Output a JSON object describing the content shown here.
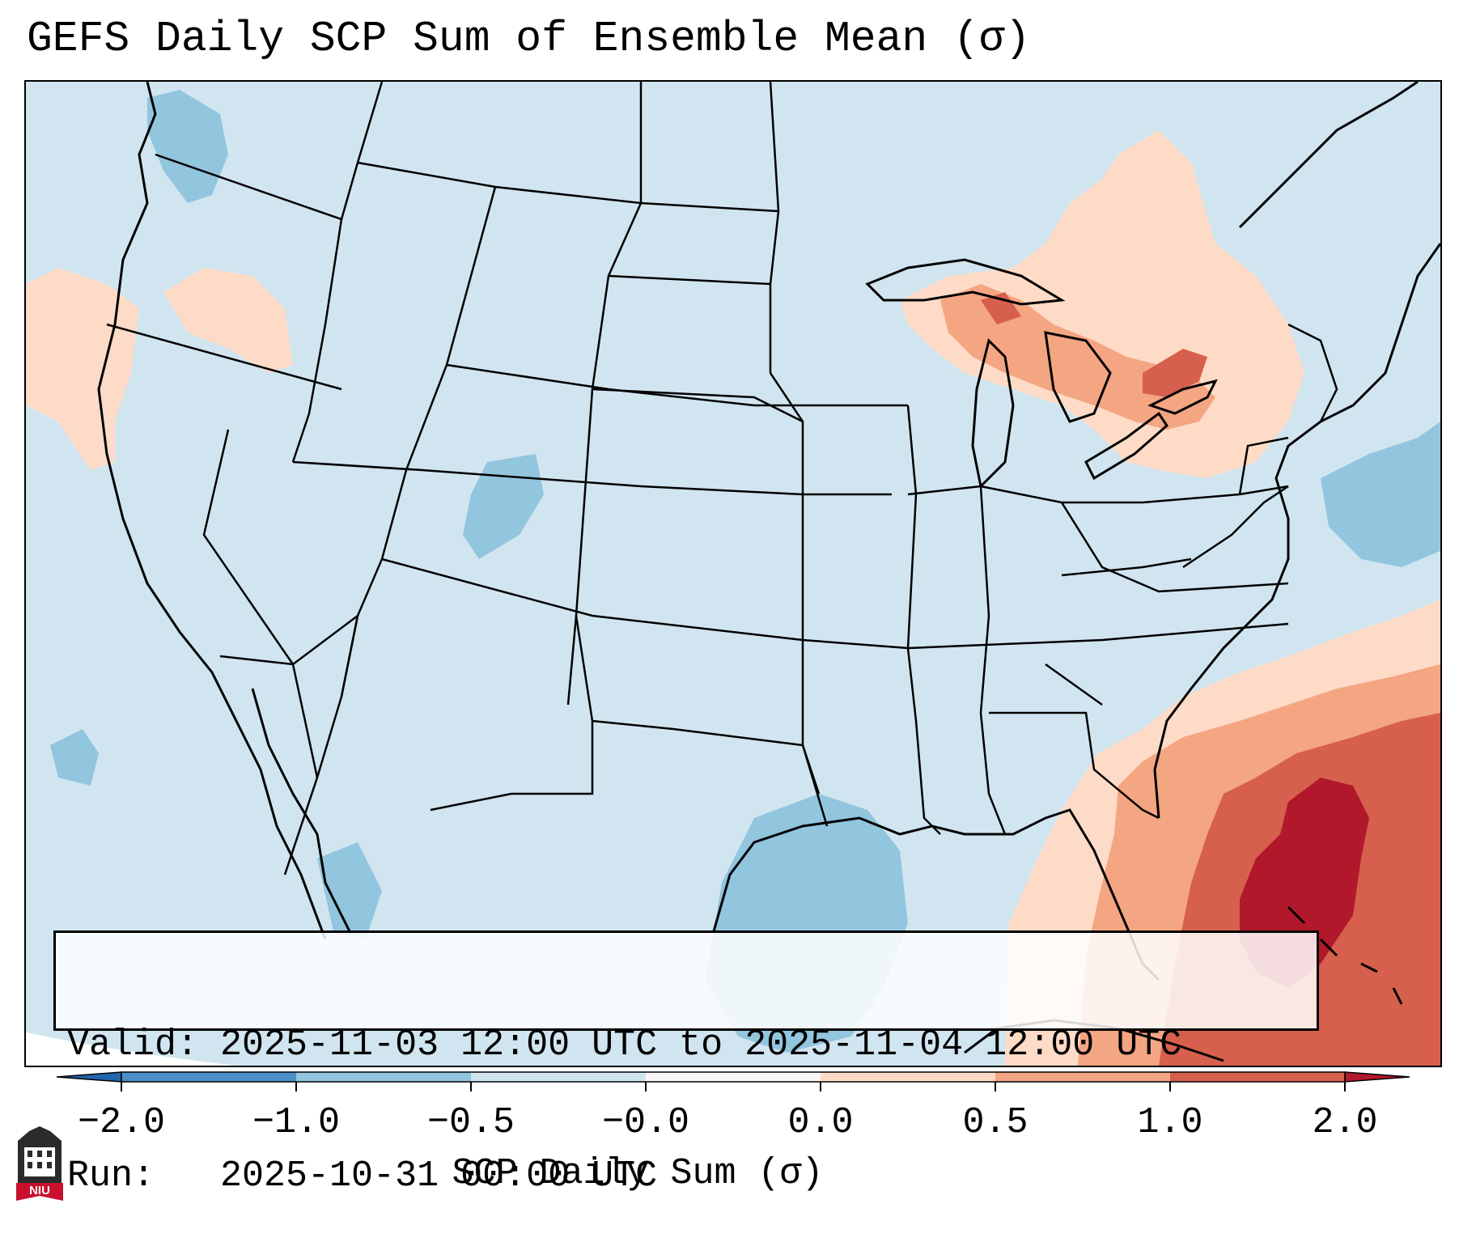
{
  "title": "GEFS Daily SCP Sum of Ensemble Mean (σ)",
  "info": {
    "valid": "Valid: 2025-11-03 12:00 UTC to 2025-11-04 12:00 UTC",
    "run": "Run:   2025-10-31 00:00 UTC"
  },
  "colorbar": {
    "label": "SCP Daily Sum (σ)",
    "ticks": [
      "−2.0",
      "−1.0",
      "−0.5",
      "−0.0",
      "0.0",
      "0.5",
      "1.0",
      "2.0"
    ],
    "colors": [
      "#4a8fc7",
      "#92c5de",
      "#d1e5f0",
      "#f7f7f7",
      "#fddbc7",
      "#f4a582",
      "#d6604d",
      "#b2182b"
    ],
    "extend_low": "#2166ac",
    "extend_high": "#b2182b"
  },
  "map": {
    "background_color": "#d1e5f0",
    "region": "Continental United States"
  },
  "logo": {
    "text": "NIU",
    "colors": {
      "building": "#2b2b2b",
      "banner": "#c8102e"
    }
  }
}
